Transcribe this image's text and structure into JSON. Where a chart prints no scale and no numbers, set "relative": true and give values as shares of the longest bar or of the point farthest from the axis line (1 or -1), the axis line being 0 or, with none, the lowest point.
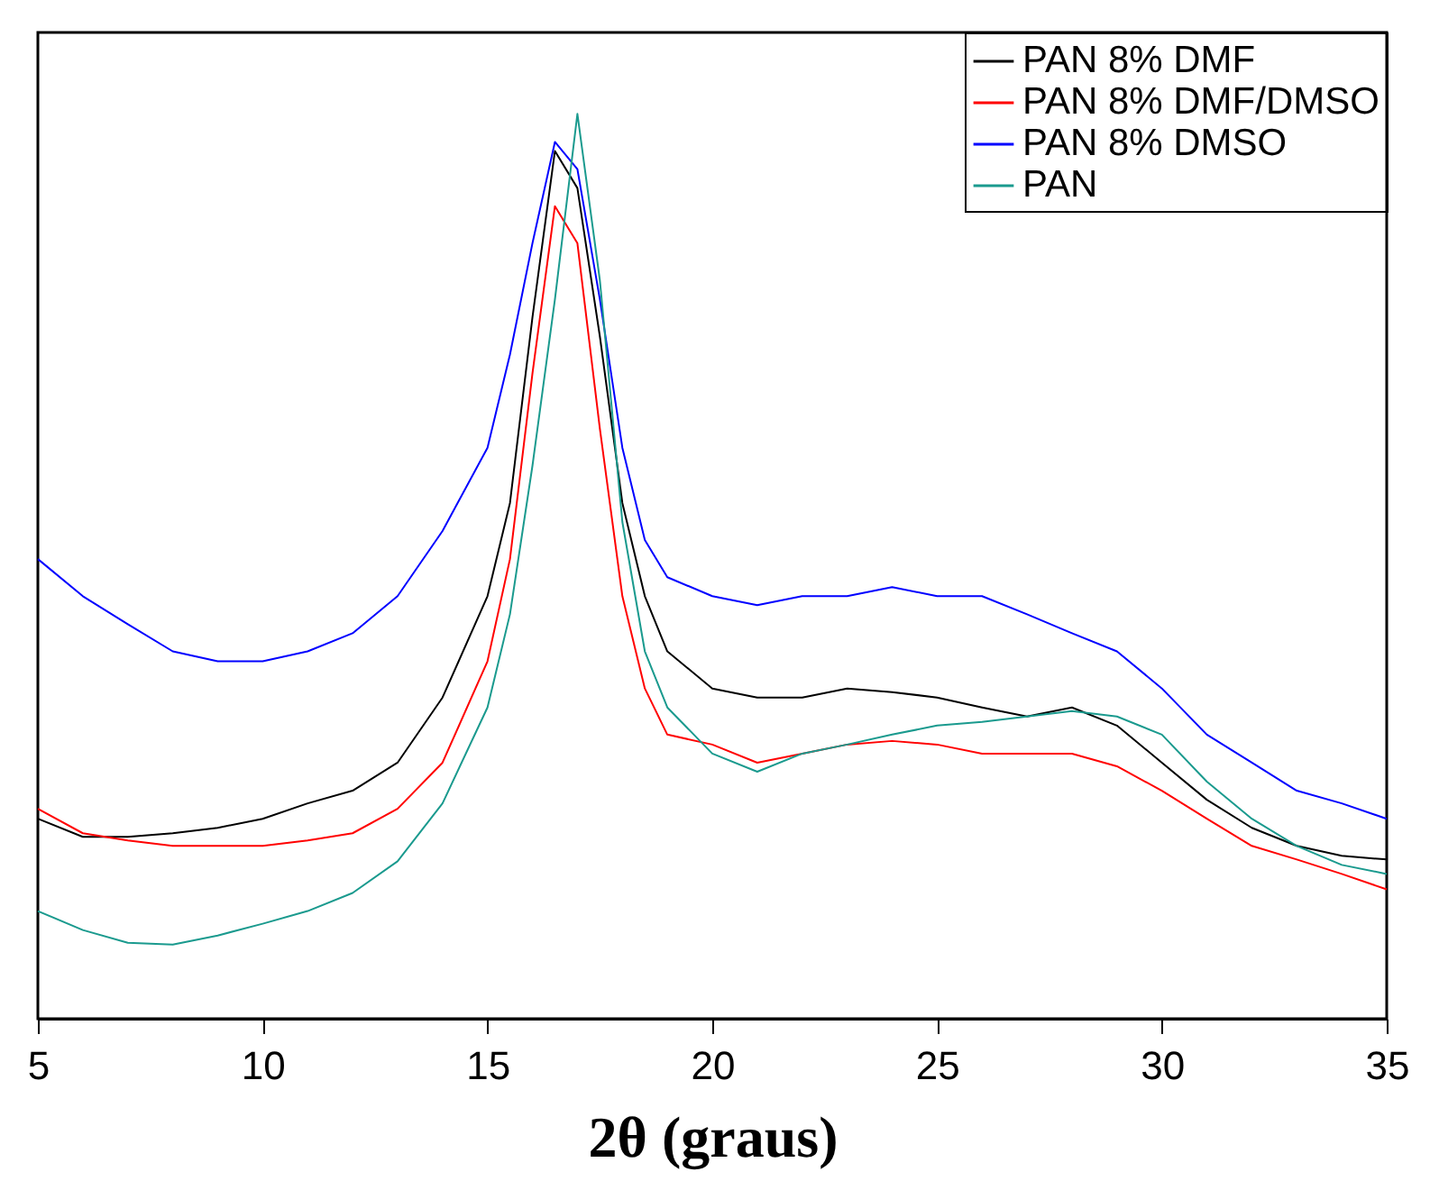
{
  "chart_data": {
    "type": "line",
    "xlabel": "2θ (graus)",
    "relative": true,
    "xlim": [
      5,
      35
    ],
    "xticks": [
      5,
      10,
      15,
      20,
      25,
      30,
      35
    ],
    "grid": false,
    "legend": "top right",
    "line_style": "solid",
    "marker": "none",
    "x": [
      5,
      6,
      7,
      8,
      9,
      10,
      11,
      12,
      13,
      14,
      15,
      15.5,
      16,
      16.5,
      17,
      17.5,
      18,
      18.5,
      19,
      20,
      21,
      22,
      23,
      24,
      25,
      26,
      27,
      28,
      29,
      30,
      31,
      32,
      33,
      34,
      35
    ],
    "series": [
      {
        "name": "PAN 8% DMF",
        "color": "#000000",
        "values": [
          0.221,
          0.201,
          0.201,
          0.205,
          0.211,
          0.221,
          0.238,
          0.252,
          0.283,
          0.355,
          0.467,
          0.57,
          0.775,
          0.959,
          0.918,
          0.754,
          0.57,
          0.467,
          0.406,
          0.365,
          0.355,
          0.355,
          0.365,
          0.361,
          0.355,
          0.344,
          0.334,
          0.344,
          0.324,
          0.283,
          0.242,
          0.211,
          0.191,
          0.18,
          0.176
        ]
      },
      {
        "name": "PAN 8% DMF/DMSO",
        "color": "#ff0000",
        "values": [
          0.232,
          0.205,
          0.197,
          0.191,
          0.191,
          0.191,
          0.197,
          0.205,
          0.232,
          0.283,
          0.395,
          0.508,
          0.713,
          0.898,
          0.857,
          0.652,
          0.467,
          0.365,
          0.314,
          0.303,
          0.283,
          0.293,
          0.303,
          0.307,
          0.303,
          0.293,
          0.293,
          0.293,
          0.279,
          0.252,
          0.221,
          0.191,
          0.176,
          0.16,
          0.143
        ]
      },
      {
        "name": "PAN 8% DMSO",
        "color": "#0000ff",
        "values": [
          0.508,
          0.467,
          0.436,
          0.406,
          0.395,
          0.395,
          0.406,
          0.426,
          0.467,
          0.539,
          0.631,
          0.734,
          0.857,
          0.969,
          0.939,
          0.795,
          0.631,
          0.529,
          0.488,
          0.467,
          0.457,
          0.467,
          0.467,
          0.477,
          0.467,
          0.467,
          0.447,
          0.426,
          0.406,
          0.365,
          0.314,
          0.283,
          0.252,
          0.238,
          0.221
        ]
      },
      {
        "name": "PAN",
        "color": "#1a9a8e",
        "values": [
          0.119,
          0.098,
          0.084,
          0.082,
          0.092,
          0.105,
          0.119,
          0.139,
          0.174,
          0.238,
          0.344,
          0.447,
          0.611,
          0.795,
          1,
          0.816,
          0.549,
          0.406,
          0.344,
          0.293,
          0.273,
          0.293,
          0.303,
          0.314,
          0.324,
          0.328,
          0.334,
          0.34,
          0.334,
          0.314,
          0.262,
          0.221,
          0.191,
          0.17,
          0.16
        ]
      }
    ]
  }
}
